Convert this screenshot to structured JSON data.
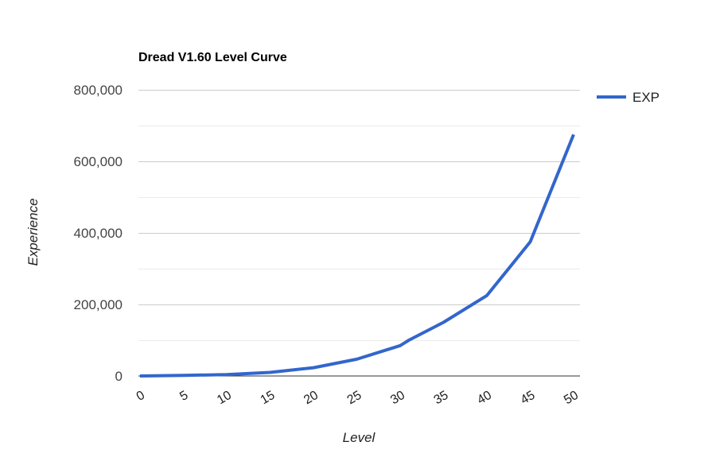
{
  "chart_data": {
    "type": "line",
    "title": "Dread V1.60 Level Curve",
    "xlabel": "Level",
    "ylabel": "Experience",
    "xlim": [
      0,
      50
    ],
    "ylim": [
      0,
      800000
    ],
    "x_ticks": [
      "0",
      "5",
      "10",
      "15",
      "20",
      "25",
      "30",
      "35",
      "40",
      "45",
      "50"
    ],
    "y_ticks": [
      "0",
      "200,000",
      "400,000",
      "600,000",
      "800,000"
    ],
    "grid": true,
    "legend_position": "right",
    "series": [
      {
        "name": "EXP",
        "color": "#3366cc",
        "x": [
          0,
          5,
          10,
          15,
          20,
          25,
          30,
          31,
          35,
          40,
          45,
          50
        ],
        "values": [
          0,
          1500,
          4000,
          10000,
          23000,
          47000,
          85000,
          100000,
          150000,
          225000,
          375000,
          675000
        ]
      }
    ]
  },
  "colors": {
    "series": "#3366cc",
    "gridline": "#cccccc",
    "minor_gridline": "#ebebeb",
    "baseline": "#333333"
  }
}
